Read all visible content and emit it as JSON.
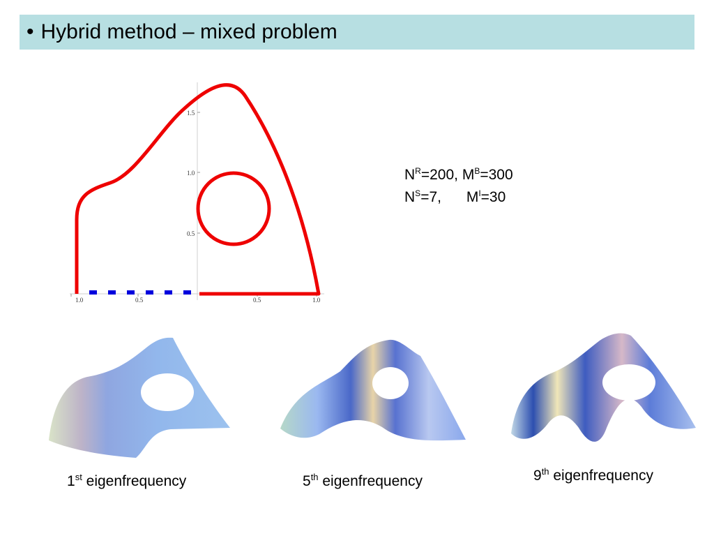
{
  "title": "Hybrid method – mixed problem",
  "bullet": "•",
  "plot": {
    "ticks_x": [
      "1.0",
      "0.5",
      "0.5",
      "1.0"
    ],
    "ticks_y": [
      "0.5",
      "1.0",
      "1.5"
    ],
    "colors": {
      "boundary": "#ee0000",
      "dashed_boundary": "#0000dd"
    }
  },
  "parameters": [
    [
      {
        "sym": "N",
        "sup": "R",
        "val": "=200,"
      },
      {
        "sym": "M",
        "sup": "B",
        "val": "=300"
      }
    ],
    [
      {
        "sym": "N",
        "sup": "S",
        "val": "=7,"
      },
      {
        "sym": "M",
        "sup": "I",
        "val": "=30"
      }
    ]
  ],
  "captions": [
    {
      "num": "1",
      "sup": "st",
      "text": " eigenfrequency"
    },
    {
      "num": "5",
      "sup": "th",
      "text": " eigenfrequency"
    },
    {
      "num": "9",
      "sup": "th",
      "text": " eigenfrequency"
    }
  ]
}
